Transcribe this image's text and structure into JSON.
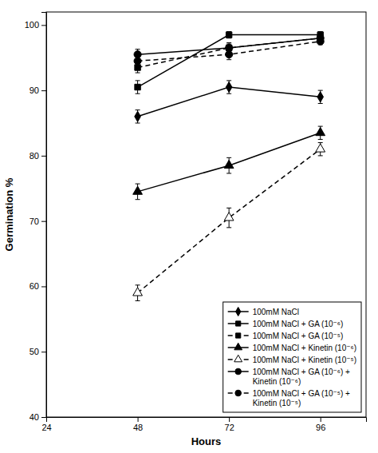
{
  "chart_data": {
    "type": "line",
    "xlabel": "Hours",
    "ylabel": "Germination %",
    "x": [
      48,
      72,
      96
    ],
    "series": [
      {
        "name": "100mM NaCl",
        "color": "black",
        "marker": "diamond",
        "line_style": "solid",
        "values": [
          86,
          90.5,
          89
        ],
        "errors": [
          1.0,
          1.0,
          1.0
        ]
      },
      {
        "name": "100mM NaCl + GA (10⁻⁶)",
        "color": "black",
        "marker": "square",
        "line_style": "solid",
        "values": [
          90.5,
          98.5,
          98.5
        ],
        "errors": [
          1.0,
          0.5,
          0.5
        ]
      },
      {
        "name": "100mM NaCl + GA (10⁻⁵)",
        "color": "black",
        "marker": "square",
        "line_style": "dashed",
        "values": [
          93.5,
          96.5,
          98
        ],
        "errors": [
          0.8,
          0.6,
          0.5
        ]
      },
      {
        "name": "100mM NaCl + Kinetin (10⁻⁶)",
        "color": "black",
        "marker": "triangle",
        "line_style": "solid",
        "values": [
          74.5,
          78.5,
          83.5
        ],
        "errors": [
          1.2,
          1.2,
          1.0
        ]
      },
      {
        "name": "100mM NaCl + Kinetin (10⁻⁵)",
        "color": "black",
        "marker": "triangle-open",
        "line_style": "dashed",
        "values": [
          59,
          70.5,
          81
        ],
        "errors": [
          1.2,
          1.5,
          1.0
        ]
      },
      {
        "name": "100mM NaCl + GA (10⁻⁶) +\nKinetin (10⁻⁶)",
        "color": "black",
        "marker": "circle",
        "line_style": "solid",
        "values": [
          95.5,
          96.5,
          98
        ],
        "errors": [
          0.8,
          0.8,
          0.5
        ]
      },
      {
        "name": "100mM NaCl + GA (10⁻⁵) +\nKinetin (10⁻⁵)",
        "color": "black",
        "marker": "circle",
        "line_style": "dashed",
        "values": [
          94.5,
          95.5,
          97.5
        ],
        "errors": [
          0.8,
          0.8,
          0.5
        ]
      }
    ],
    "xlim": [
      24,
      108
    ],
    "ylim": [
      40,
      102
    ],
    "xticks": [
      24,
      48,
      72,
      96
    ],
    "yticks": [
      40,
      50,
      60,
      70,
      80,
      90,
      100
    ],
    "grid": false,
    "legend": "lower right"
  }
}
